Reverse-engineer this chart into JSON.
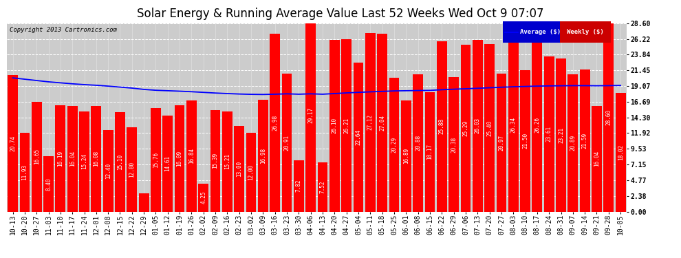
{
  "title": "Solar Energy & Running Average Value Last 52 Weeks Wed Oct 9 07:07",
  "copyright": "Copyright 2013 Cartronics.com",
  "categories": [
    "10-13",
    "10-20",
    "10-27",
    "11-03",
    "11-10",
    "11-17",
    "11-24",
    "12-01",
    "12-08",
    "12-15",
    "12-22",
    "12-29",
    "01-05",
    "01-12",
    "01-19",
    "01-26",
    "02-02",
    "02-09",
    "02-16",
    "02-23",
    "03-02",
    "03-09",
    "03-16",
    "03-23",
    "03-30",
    "04-06",
    "04-13",
    "04-20",
    "04-27",
    "05-04",
    "05-11",
    "05-18",
    "05-25",
    "06-01",
    "06-08",
    "06-15",
    "06-22",
    "06-29",
    "07-06",
    "07-13",
    "07-20",
    "07-27",
    "08-03",
    "08-10",
    "08-17",
    "08-24",
    "08-31",
    "09-07",
    "09-14",
    "09-21",
    "09-28",
    "10-05"
  ],
  "weekly_values": [
    20.74,
    11.93,
    16.65,
    8.4,
    16.19,
    16.04,
    15.24,
    16.08,
    12.4,
    15.1,
    12.8,
    2.74,
    15.76,
    14.61,
    16.09,
    16.84,
    4.25,
    15.39,
    15.21,
    13.0,
    12.0,
    16.98,
    26.98,
    20.91,
    7.82,
    29.17,
    7.52,
    26.1,
    26.21,
    22.64,
    27.12,
    27.04,
    20.29,
    16.89,
    20.88,
    18.17,
    25.88,
    20.38,
    25.29,
    26.03,
    25.4,
    20.97,
    26.34,
    21.5,
    26.26,
    23.61,
    23.21,
    20.89,
    21.59,
    16.04,
    28.6,
    18.02
  ],
  "running_avg": [
    20.3,
    20.1,
    19.9,
    19.7,
    19.55,
    19.4,
    19.28,
    19.18,
    19.05,
    18.9,
    18.75,
    18.55,
    18.42,
    18.35,
    18.28,
    18.2,
    18.1,
    18.0,
    17.92,
    17.85,
    17.8,
    17.78,
    17.82,
    17.88,
    17.82,
    17.88,
    17.82,
    17.92,
    18.02,
    18.1,
    18.18,
    18.25,
    18.32,
    18.35,
    18.38,
    18.4,
    18.5,
    18.58,
    18.65,
    18.72,
    18.8,
    18.88,
    18.95,
    19.0,
    19.05,
    19.08,
    19.1,
    19.12,
    19.12,
    19.1,
    19.12,
    19.15
  ],
  "bar_color": "#ff0000",
  "avg_line_color": "#0000ff",
  "background_color": "#ffffff",
  "plot_bg_color": "#cccccc",
  "grid_color": "#ffffff",
  "yticks": [
    0.0,
    2.38,
    4.77,
    7.15,
    9.53,
    11.92,
    14.3,
    16.69,
    19.07,
    21.45,
    23.84,
    26.22,
    28.6
  ],
  "ylim_max": 28.6,
  "title_fontsize": 12,
  "copyright_fontsize": 6.5,
  "tick_fontsize": 7,
  "bar_label_fontsize": 5.5,
  "legend_avg_bg": "#0000cd",
  "legend_weekly_bg": "#cc0000"
}
